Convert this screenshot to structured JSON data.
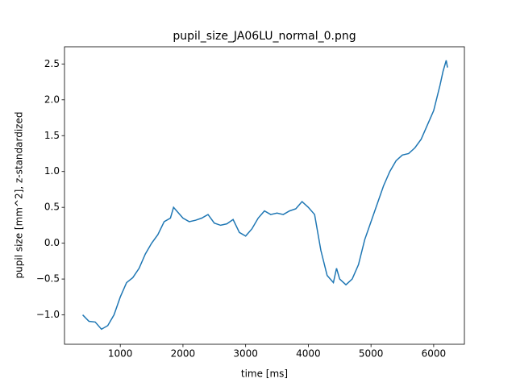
{
  "chart_data": {
    "type": "line",
    "title": "pupil_size_JA06LU_normal_0.png",
    "xlabel": "time [ms]",
    "ylabel": "pupil size [mm^2], z-standardized",
    "x": [
      400,
      500,
      600,
      700,
      800,
      900,
      1000,
      1100,
      1200,
      1300,
      1400,
      1500,
      1600,
      1700,
      1800,
      1850,
      1900,
      2000,
      2100,
      2200,
      2300,
      2400,
      2500,
      2600,
      2700,
      2800,
      2900,
      3000,
      3100,
      3200,
      3300,
      3400,
      3500,
      3600,
      3700,
      3800,
      3900,
      4000,
      4100,
      4200,
      4300,
      4400,
      4450,
      4500,
      4600,
      4700,
      4800,
      4900,
      5000,
      5100,
      5200,
      5300,
      5400,
      5500,
      5600,
      5700,
      5800,
      5900,
      6000,
      6100,
      6150,
      6200,
      6220
    ],
    "series": [
      {
        "color": "#1f77b4",
        "values": [
          -1.0,
          -1.09,
          -1.1,
          -1.2,
          -1.15,
          -1.0,
          -0.75,
          -0.55,
          -0.48,
          -0.35,
          -0.15,
          0.0,
          0.12,
          0.3,
          0.35,
          0.5,
          0.45,
          0.35,
          0.3,
          0.32,
          0.35,
          0.4,
          0.28,
          0.25,
          0.27,
          0.33,
          0.15,
          0.1,
          0.2,
          0.35,
          0.45,
          0.4,
          0.42,
          0.4,
          0.45,
          0.48,
          0.58,
          0.5,
          0.4,
          -0.1,
          -0.45,
          -0.55,
          -0.35,
          -0.5,
          -0.58,
          -0.5,
          -0.3,
          0.05,
          0.3,
          0.55,
          0.8,
          1.0,
          1.15,
          1.23,
          1.25,
          1.33,
          1.45,
          1.65,
          1.85,
          2.2,
          2.4,
          2.55,
          2.45
        ]
      }
    ],
    "xlim": [
      110,
      6490
    ],
    "ylim": [
      -1.41,
      2.74
    ],
    "xticks": [
      1000,
      2000,
      3000,
      4000,
      5000,
      6000
    ],
    "yticks": [
      {
        "value": -1.0,
        "label": "−1.0"
      },
      {
        "value": -0.5,
        "label": "−0.5"
      },
      {
        "value": 0.0,
        "label": "0.0"
      },
      0.5,
      {
        "value": 1.0,
        "label": "1.0"
      },
      1.5,
      {
        "value": 2.0,
        "label": "2.0"
      },
      2.5
    ]
  }
}
